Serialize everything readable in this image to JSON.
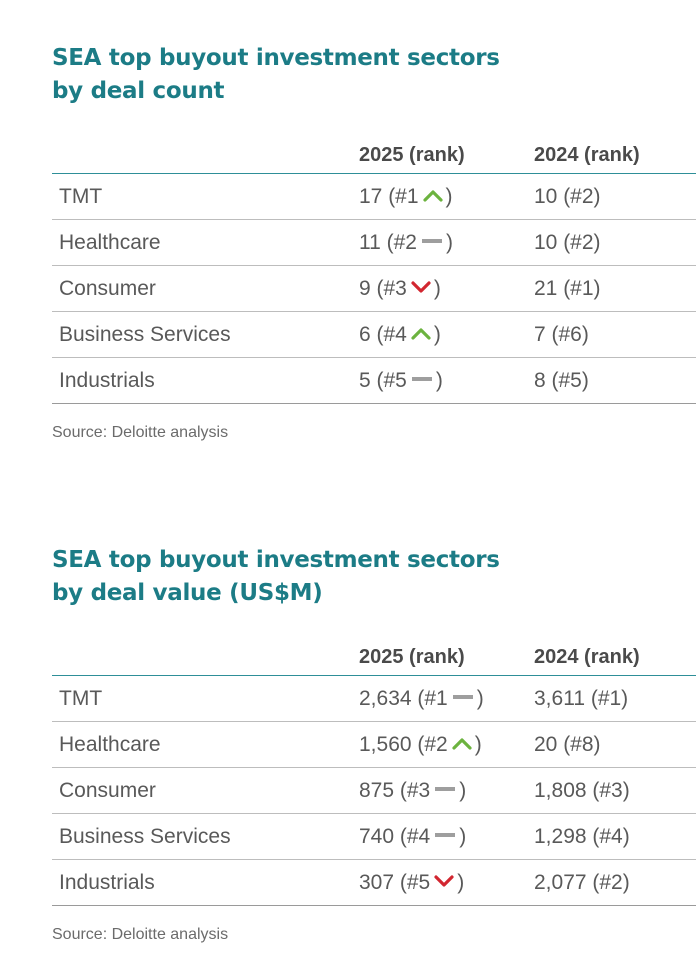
{
  "sections": [
    {
      "title_line1": "SEA top buyout investment sectors",
      "title_line2": "by deal count",
      "headers": [
        "2025 (rank)",
        "2024 (rank)"
      ],
      "rows": [
        {
          "sector": "TMT",
          "v2025": "17 (#1",
          "trend": "up",
          "v2025_close": ")",
          "v2024": "10 (#2)"
        },
        {
          "sector": "Healthcare",
          "v2025": "11 (#2",
          "trend": "flat",
          "v2025_close": ")",
          "v2024": "10 (#2)"
        },
        {
          "sector": "Consumer",
          "v2025": "9 (#3",
          "trend": "down",
          "v2025_close": ")",
          "v2024": "21 (#1)"
        },
        {
          "sector": "Business Services",
          "v2025": "6 (#4",
          "trend": "up",
          "v2025_close": ")",
          "v2024": "7 (#6)"
        },
        {
          "sector": "Industrials",
          "v2025": "5 (#5",
          "trend": "flat",
          "v2025_close": ")",
          "v2024": "8 (#5)"
        }
      ],
      "source": "Source: Deloitte analysis"
    },
    {
      "title_line1": "SEA top buyout investment sectors",
      "title_line2": "by deal value (US$M)",
      "headers": [
        "2025 (rank)",
        "2024 (rank)"
      ],
      "rows": [
        {
          "sector": "TMT",
          "v2025": "2,634 (#1",
          "trend": "flat",
          "v2025_close": ")",
          "v2024": "3,611 (#1)"
        },
        {
          "sector": "Healthcare",
          "v2025": "1,560 (#2",
          "trend": "up",
          "v2025_close": ")",
          "v2024": "20 (#8)"
        },
        {
          "sector": "Consumer",
          "v2025": "875 (#3",
          "trend": "flat",
          "v2025_close": ")",
          "v2024": "1,808 (#3)"
        },
        {
          "sector": "Business Services",
          "v2025": "740 (#4",
          "trend": "flat",
          "v2025_close": ")",
          "v2024": "1,298 (#4)"
        },
        {
          "sector": "Industrials",
          "v2025": "307 (#5",
          "trend": "down",
          "v2025_close": ")",
          "v2024": "2,077 (#2)"
        }
      ],
      "source": "Source: Deloitte analysis"
    }
  ],
  "colors": {
    "title": "#1c7c86",
    "up": "#6cb33f",
    "down": "#d22630",
    "flat": "#9e9e9e"
  }
}
